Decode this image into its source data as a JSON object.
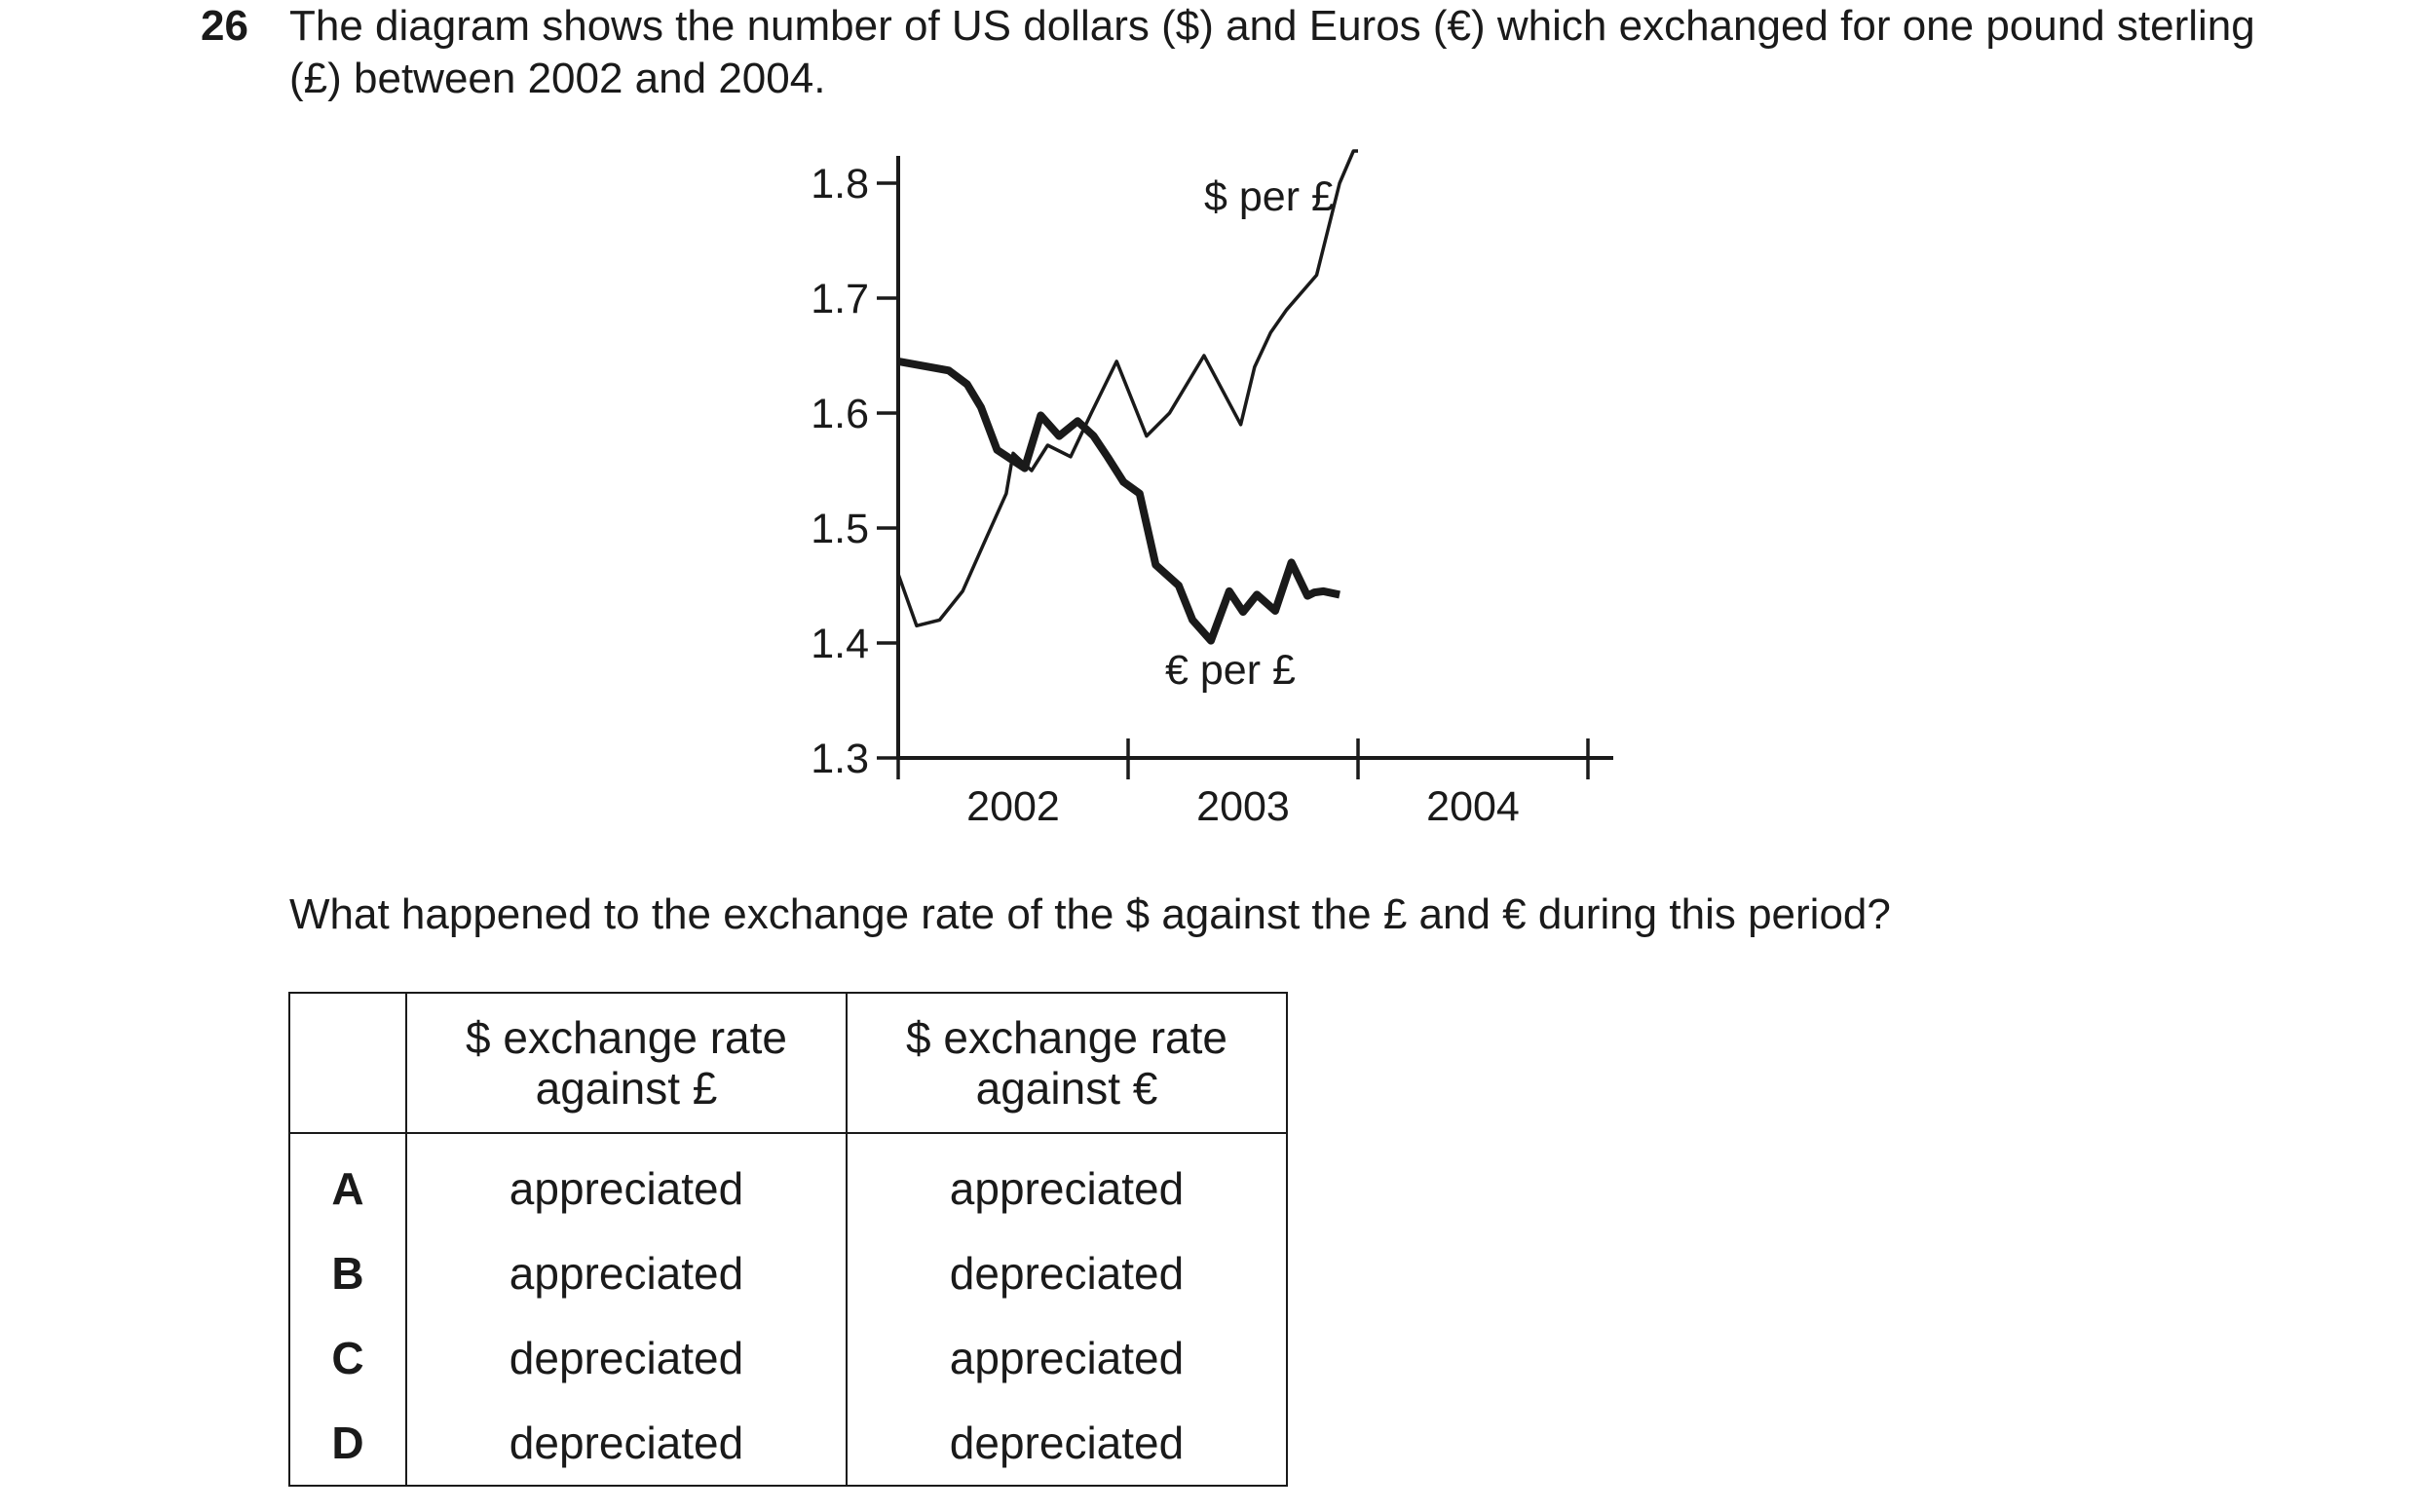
{
  "question": {
    "number": "26",
    "text": "The diagram shows the number of US dollars ($) and Euros (€) which exchanged for one pound sterling (£) between 2002 and 2004.",
    "prompt": "What happened to the exchange rate of the $ against the £ and € during this period?"
  },
  "chart_data": {
    "type": "line",
    "title": "",
    "xlabel": "",
    "ylabel": "",
    "x_ticks": [
      "2002",
      "2003",
      "2004"
    ],
    "y_ticks": [
      "1.3",
      "1.4",
      "1.5",
      "1.6",
      "1.7",
      "1.8"
    ],
    "xlim": [
      2001.5,
      2004.6
    ],
    "ylim": [
      1.3,
      1.82
    ],
    "annotations": [
      "$ per £",
      "€ per £"
    ],
    "series": [
      {
        "name": "$ per £",
        "style": "thin",
        "x": [
          2001.5,
          2001.58,
          2001.68,
          2001.78,
          2001.88,
          2001.97,
          2002.0,
          2002.08,
          2002.15,
          2002.25,
          2002.34,
          2002.45,
          2002.58,
          2002.68,
          2002.83,
          2002.99,
          2003.05,
          2003.12,
          2003.19,
          2003.32,
          2003.42,
          2003.48,
          2003.5
        ],
        "y": [
          1.46,
          1.415,
          1.42,
          1.445,
          1.49,
          1.53,
          1.565,
          1.55,
          1.572,
          1.562,
          1.6,
          1.645,
          1.58,
          1.6,
          1.65,
          1.59,
          1.64,
          1.67,
          1.69,
          1.72,
          1.8,
          1.83,
          1.85
        ]
      },
      {
        "name": "€ per £",
        "style": "thick",
        "x": [
          2001.5,
          2001.72,
          2001.8,
          2001.86,
          2001.93,
          2002.05,
          2002.12,
          2002.2,
          2002.28,
          2002.35,
          2002.41,
          2002.48,
          2002.55,
          2002.62,
          2002.72,
          2002.78,
          2002.86,
          2002.94,
          2003.0,
          2003.06,
          2003.14,
          2003.21,
          2003.28,
          2003.31,
          2003.35,
          2003.42
        ],
        "y": [
          1.645,
          1.637,
          1.625,
          1.605,
          1.568,
          1.552,
          1.598,
          1.58,
          1.593,
          1.58,
          1.562,
          1.54,
          1.53,
          1.468,
          1.45,
          1.42,
          1.402,
          1.445,
          1.427,
          1.442,
          1.428,
          1.47,
          1.441,
          1.444,
          1.445,
          1.442
        ]
      }
    ]
  },
  "table": {
    "headers": [
      "",
      "$ exchange rate against £",
      "$ exchange rate against €"
    ],
    "rows": [
      {
        "letter": "A",
        "pound": "appreciated",
        "euro": "appreciated"
      },
      {
        "letter": "B",
        "pound": "appreciated",
        "euro": "depreciated"
      },
      {
        "letter": "C",
        "pound": "depreciated",
        "euro": "appreciated"
      },
      {
        "letter": "D",
        "pound": "depreciated",
        "euro": "depreciated"
      }
    ]
  }
}
